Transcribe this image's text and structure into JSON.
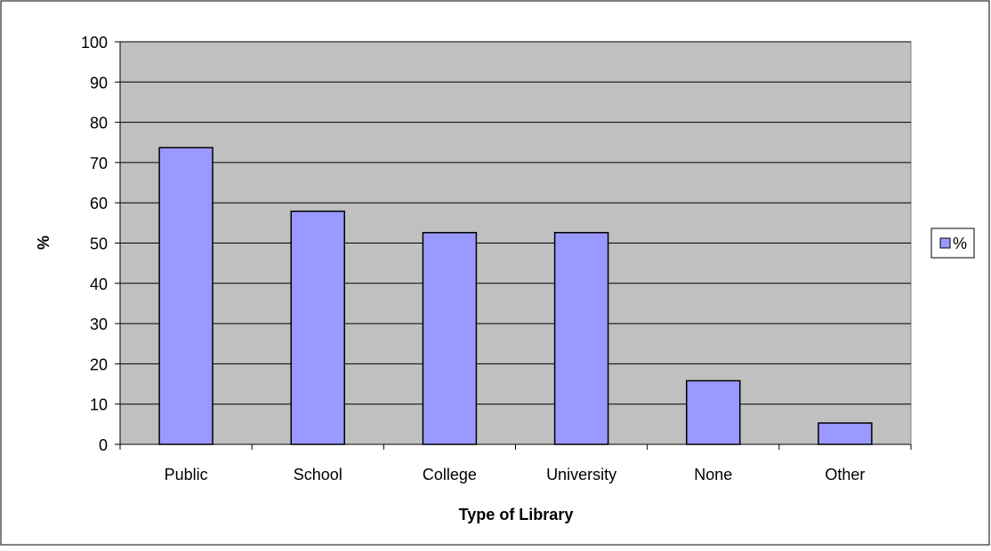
{
  "chart_data": {
    "type": "bar",
    "title": "",
    "xlabel": "Type of Library",
    "ylabel": "%",
    "categories": [
      "Public",
      "School",
      "College",
      "University",
      "None",
      "Other"
    ],
    "series": [
      {
        "name": "%",
        "values": [
          73.7,
          57.9,
          52.6,
          52.6,
          15.8,
          5.3
        ]
      }
    ],
    "ylim": [
      0,
      100
    ],
    "yticks": [
      0,
      10,
      20,
      30,
      40,
      50,
      60,
      70,
      80,
      90,
      100
    ],
    "grid": true,
    "legend_position": "right",
    "colors": {
      "plot_background": "#c0c0c0",
      "bar_fill": "#9999ff",
      "bar_stroke": "#000000",
      "gridline": "#000000"
    }
  }
}
